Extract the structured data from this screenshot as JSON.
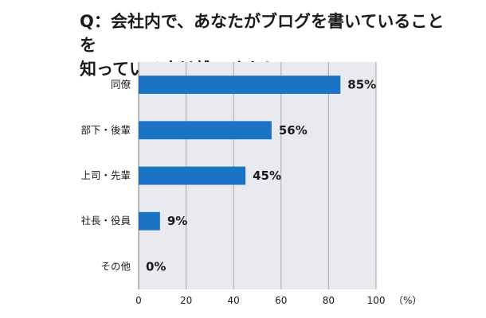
{
  "chart_data": {
    "type": "bar",
    "orientation": "horizontal",
    "title": "Q：会社内で、あなたがブログを書いていることを\n知っている人は誰ですか？",
    "categories": [
      "同僚",
      "部下・後輩",
      "上司・先輩",
      "社長・役員",
      "その他"
    ],
    "values": [
      85,
      56,
      45,
      9,
      0
    ],
    "value_labels": [
      "85%",
      "56%",
      "45%",
      "9%",
      "0%"
    ],
    "xticks": [
      "0",
      "20",
      "40",
      "60",
      "80",
      "100"
    ],
    "xlim": [
      0,
      100
    ],
    "xunit": "（%）",
    "grid": true,
    "colors": {
      "bar": "#1a73c4",
      "plot_bg": "#e9e9f0",
      "grid": "#a8a8a8"
    }
  }
}
